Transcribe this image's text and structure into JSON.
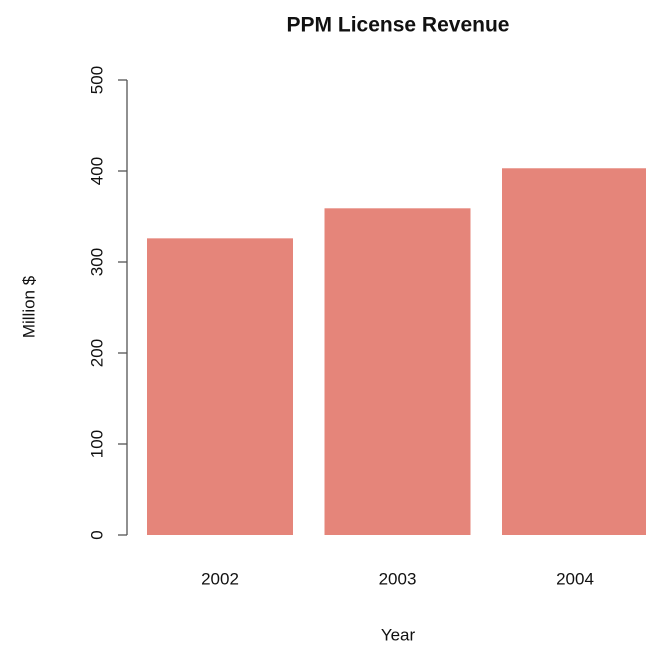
{
  "chart_data": {
    "type": "bar",
    "title": "PPM License Revenue",
    "xlabel": "Year",
    "ylabel": "Million $",
    "categories": [
      "2002",
      "2003",
      "2004"
    ],
    "values": [
      326,
      359,
      403
    ],
    "color": "#e5857a",
    "ylim": [
      0,
      500
    ],
    "yticks": [
      0,
      100,
      200,
      300,
      400,
      500
    ],
    "grid": false
  }
}
